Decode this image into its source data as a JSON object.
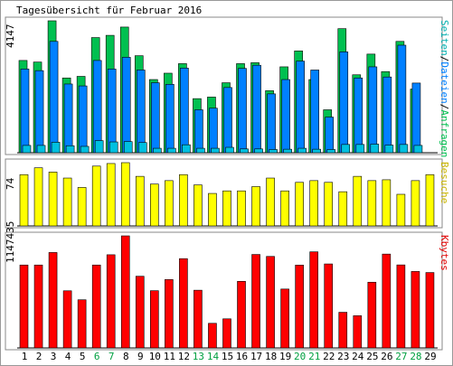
{
  "chart_data": {
    "type": "bar",
    "title": "Tagesübersicht für Februar 2016",
    "categories": [
      "1",
      "2",
      "3",
      "4",
      "5",
      "6",
      "7",
      "8",
      "9",
      "10",
      "11",
      "12",
      "13",
      "14",
      "15",
      "16",
      "17",
      "18",
      "19",
      "20",
      "21",
      "22",
      "23",
      "24",
      "25",
      "26",
      "27",
      "28",
      "29"
    ],
    "weekend_days": [
      "6",
      "7",
      "13",
      "14",
      "20",
      "21",
      "27",
      "28"
    ],
    "colors": {
      "pages": "#00c050",
      "files": "#0080ff",
      "hits": "#00c0e0",
      "visits": "#ffff00",
      "kbytes": "#ff0000",
      "weekend_label": "#00a040",
      "visits_axis_label": "#c8b400",
      "kbytes_axis_label": "#e00000",
      "hits_axis_label": "#00a0a0"
    },
    "panels": [
      {
        "id": "requests",
        "ymax_label": "4147",
        "ylim": [
          0,
          4147
        ],
        "axis_label_parts": [
          {
            "text": "Seiten",
            "color": "#00b0b0"
          },
          {
            "text": "/",
            "color": "#000000"
          },
          {
            "text": "Dateien",
            "color": "#0080ff"
          },
          {
            "text": "/",
            "color": "#000000"
          },
          {
            "text": "Anfragen",
            "color": "#00c050"
          }
        ],
        "series": [
          {
            "name": "Anfragen",
            "key": "pages",
            "values": [
              2900,
              2850,
              4147,
              2350,
              2400,
              3620,
              3690,
              3950,
              3050,
              2300,
              2500,
              2800,
              1700,
              1750,
              2200,
              2800,
              2830,
              1950,
              2700,
              3200,
              2300,
              1350,
              3900,
              2450,
              3100,
              2550,
              3500,
              2000,
              0
            ]
          },
          {
            "name": "Dateien",
            "key": "files",
            "values": [
              2630,
              2580,
              3500,
              2160,
              2100,
              2900,
              2630,
              3000,
              2600,
              2200,
              2150,
              2660,
              1350,
              1400,
              2050,
              2650,
              2750,
              1850,
              2300,
              2880,
              2600,
              1120,
              3170,
              2350,
              2700,
              2380,
              3380,
              2190,
              0
            ]
          },
          {
            "name": "Seiten",
            "key": "hits",
            "values": [
              230,
              230,
              330,
              220,
              200,
              380,
              340,
              350,
              320,
              140,
              140,
              250,
              140,
              140,
              170,
              120,
              120,
              100,
              110,
              140,
              110,
              100,
              260,
              260,
              270,
              240,
              260,
              230,
              0
            ]
          }
        ]
      },
      {
        "id": "visits",
        "ymax_label": "74",
        "ylim": [
          0,
          74
        ],
        "axis_label_parts": [
          {
            "text": "Besuche",
            "color": "#c8b400"
          }
        ],
        "series": [
          {
            "name": "Besuche",
            "key": "visits",
            "values": [
              60,
              68,
              63,
              56,
              45,
              70,
              73,
              74,
              58,
              49,
              53,
              60,
              48,
              38,
              41,
              41,
              46,
              56,
              41,
              51,
              53,
              51,
              40,
              58,
              53,
              54,
              37,
              53,
              60
            ]
          }
        ]
      },
      {
        "id": "kbytes",
        "ymax_label": "1147435",
        "ylim": [
          0,
          1147435
        ],
        "axis_label_parts": [
          {
            "text": "Kbytes",
            "color": "#e00000"
          }
        ],
        "series": [
          {
            "name": "Kbytes",
            "key": "kbytes",
            "values": [
              849000,
              849000,
              977000,
              585000,
              493000,
              849000,
              954000,
              1147435,
              734000,
              586000,
              700000,
              914000,
              591000,
              252000,
              298000,
              682000,
              957000,
              937000,
              603000,
              848000,
              984000,
              860000,
              365000,
              330000,
              673000,
              961000,
              850000,
              783000,
              772000
            ]
          }
        ]
      }
    ]
  }
}
